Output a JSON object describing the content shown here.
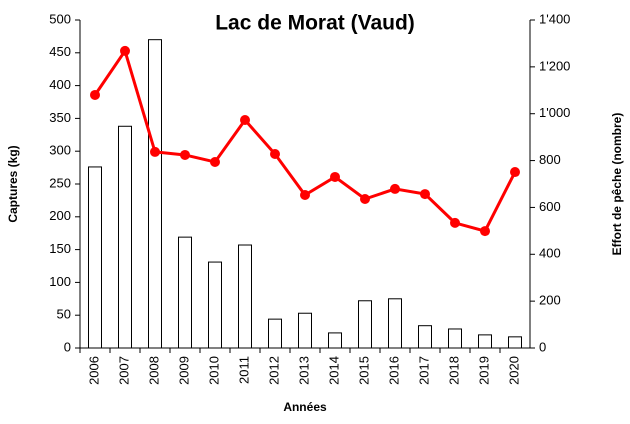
{
  "chart_data": {
    "type": "bar_line",
    "title": "Lac de Morat (Vaud)",
    "xlabel": "Années",
    "ylabel": "Captures (kg)",
    "y2label": "Effort de pêche (nombre)",
    "categories": [
      "2006",
      "2007",
      "2008",
      "2009",
      "2010",
      "2011",
      "2012",
      "2013",
      "2014",
      "2015",
      "2016",
      "2017",
      "2018",
      "2019",
      "2020"
    ],
    "series": [
      {
        "type": "bar",
        "color": "#ffffff",
        "values": [
          276,
          338,
          470,
          169,
          131,
          157,
          44,
          53,
          23,
          72,
          75,
          34,
          29,
          20,
          17
        ]
      },
      {
        "type": "line",
        "color": "#ff0000",
        "axis": "y2",
        "values": [
          1080,
          1268,
          837,
          824,
          794,
          973,
          828,
          653,
          730,
          636,
          679,
          657,
          534,
          499,
          751
        ]
      }
    ],
    "ylim": [
      0,
      500
    ],
    "yticks": [
      0,
      50,
      100,
      150,
      200,
      250,
      300,
      350,
      400,
      450,
      500
    ],
    "y2lim": [
      0,
      1400
    ],
    "y2ticks": [
      0,
      200,
      400,
      600,
      800,
      {
        "value": 1000,
        "label": "1'000"
      },
      {
        "value": 1200,
        "label": "1'200"
      },
      {
        "value": 1400,
        "label": "1'400"
      }
    ]
  }
}
